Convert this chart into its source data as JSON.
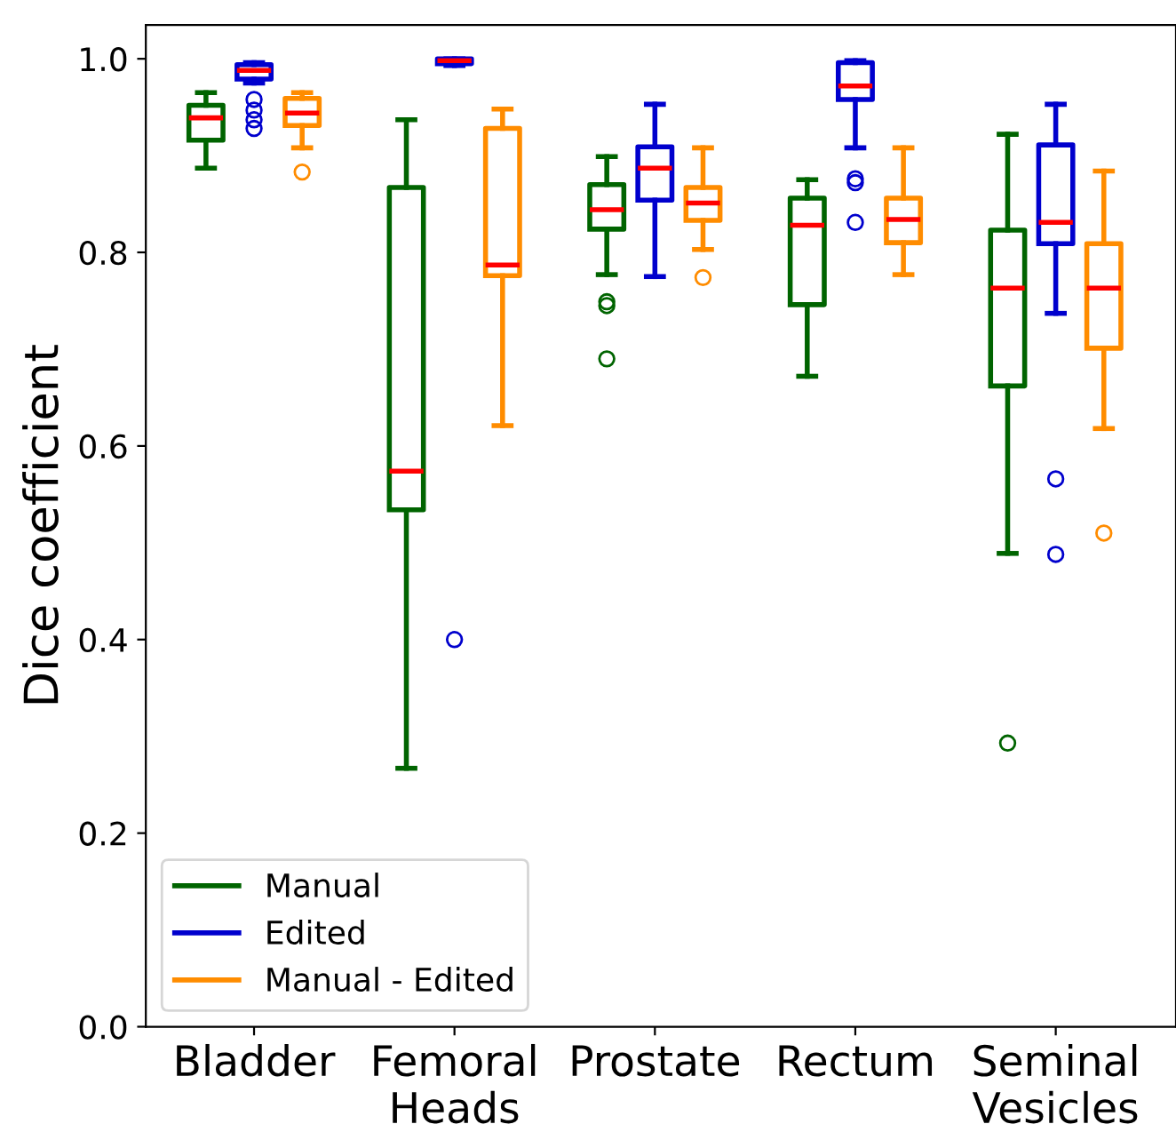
{
  "chart_data": {
    "type": "box",
    "ylabel": "Dice coefficient",
    "categories": [
      "Bladder",
      "Femoral\nHeads",
      "Prostate",
      "Rectum",
      "Seminal\nVesicles"
    ],
    "ylim": [
      0,
      1.035
    ],
    "yticks": [
      {
        "value": 0,
        "label": "0.0"
      },
      0.2,
      0.4,
      0.6,
      0.8,
      {
        "value": 1,
        "label": "1.0"
      }
    ],
    "legend": "bottom left",
    "grid": false,
    "series": [
      {
        "name": "Manual",
        "color": "#006400",
        "boxes": [
          {
            "low": 0.887,
            "q1": 0.916,
            "median": 0.939,
            "q3": 0.952,
            "high": 0.965
          },
          {
            "low": 0.267,
            "q1": 0.534,
            "median": 0.574,
            "q3": 0.867,
            "high": 0.937
          },
          {
            "low": 0.777,
            "q1": 0.824,
            "median": 0.844,
            "q3": 0.87,
            "high": 0.899,
            "outliers": [
              0.749,
              0.745,
              0.69
            ]
          },
          {
            "low": 0.672,
            "q1": 0.746,
            "median": 0.828,
            "q3": 0.856,
            "high": 0.875
          },
          {
            "low": 0.489,
            "q1": 0.662,
            "median": 0.763,
            "q3": 0.823,
            "high": 0.922,
            "outliers": [
              0.293
            ]
          }
        ]
      },
      {
        "name": "Edited",
        "color": "#0000cd",
        "boxes": [
          {
            "low": 0.975,
            "q1": 0.979,
            "median": 0.988,
            "q3": 0.994,
            "high": 0.996,
            "outliers": [
              0.958,
              0.947,
              0.937,
              0.928
            ]
          },
          {
            "low": 0.993,
            "q1": 0.995,
            "median": 0.998,
            "q3": 1.0,
            "high": 1.0,
            "outliers": [
              0.4
            ]
          },
          {
            "low": 0.775,
            "q1": 0.854,
            "median": 0.887,
            "q3": 0.909,
            "high": 0.953
          },
          {
            "low": 0.908,
            "q1": 0.958,
            "median": 0.972,
            "q3": 0.996,
            "high": 0.998,
            "outliers": [
              0.876,
              0.872,
              0.831
            ]
          },
          {
            "low": 0.737,
            "q1": 0.809,
            "median": 0.831,
            "q3": 0.911,
            "high": 0.953,
            "outliers": [
              0.566,
              0.488
            ]
          }
        ]
      },
      {
        "name": "Manual - Edited",
        "color": "#ff8c00",
        "boxes": [
          {
            "low": 0.908,
            "q1": 0.931,
            "median": 0.944,
            "q3": 0.959,
            "high": 0.965,
            "outliers": [
              0.883
            ]
          },
          {
            "low": 0.621,
            "q1": 0.776,
            "median": 0.787,
            "q3": 0.928,
            "high": 0.948
          },
          {
            "low": 0.803,
            "q1": 0.833,
            "median": 0.851,
            "q3": 0.867,
            "high": 0.908,
            "outliers": [
              0.774
            ]
          },
          {
            "low": 0.777,
            "q1": 0.81,
            "median": 0.834,
            "q3": 0.856,
            "high": 0.908
          },
          {
            "low": 0.618,
            "q1": 0.701,
            "median": 0.763,
            "q3": 0.809,
            "high": 0.884,
            "outliers": [
              0.51
            ]
          }
        ]
      }
    ]
  }
}
